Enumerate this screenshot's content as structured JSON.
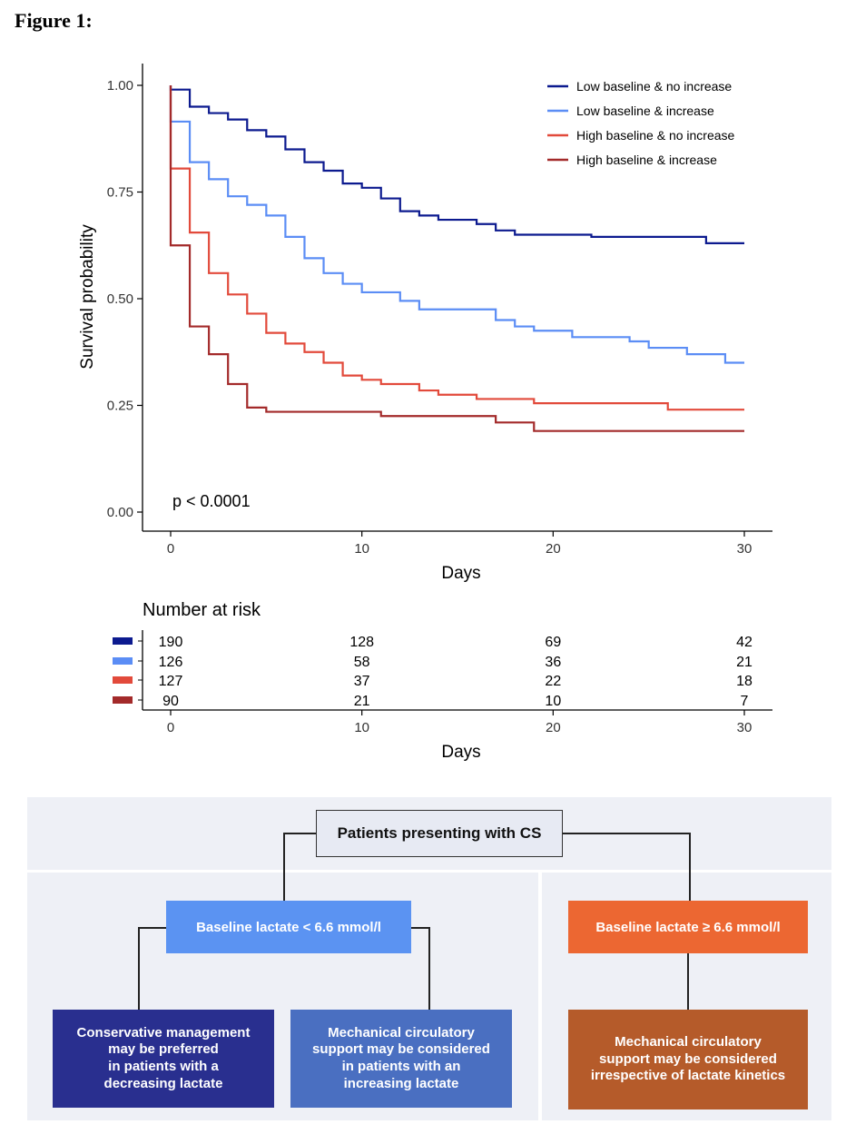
{
  "figure_label": "Figure 1:",
  "chart_data": {
    "type": "line",
    "step": true,
    "xlabel": "Days",
    "ylabel": "Survival probability",
    "xlim": [
      0,
      30
    ],
    "ylim": [
      0,
      1
    ],
    "xticks": [
      0,
      10,
      20,
      30
    ],
    "yticks": [
      "0.00",
      "0.25",
      "0.50",
      "0.75",
      "1.00"
    ],
    "annotation": "p < 0.0001",
    "legend_position": "top-right",
    "series": [
      {
        "name": "Low baseline & no increase",
        "color": "#0c1a8f",
        "points": [
          [
            0,
            0.99
          ],
          [
            1,
            0.95
          ],
          [
            2,
            0.935
          ],
          [
            3,
            0.92
          ],
          [
            4,
            0.895
          ],
          [
            5,
            0.88
          ],
          [
            6,
            0.85
          ],
          [
            7,
            0.82
          ],
          [
            8,
            0.8
          ],
          [
            9,
            0.77
          ],
          [
            10,
            0.76
          ],
          [
            11,
            0.735
          ],
          [
            12,
            0.705
          ],
          [
            13,
            0.695
          ],
          [
            14,
            0.685
          ],
          [
            16,
            0.675
          ],
          [
            17,
            0.66
          ],
          [
            18,
            0.65
          ],
          [
            22,
            0.645
          ],
          [
            28,
            0.63
          ],
          [
            30,
            0.63
          ]
        ]
      },
      {
        "name": "Low baseline & increase",
        "color": "#5b8df5",
        "points": [
          [
            0,
            0.915
          ],
          [
            1,
            0.82
          ],
          [
            2,
            0.78
          ],
          [
            3,
            0.74
          ],
          [
            4,
            0.72
          ],
          [
            5,
            0.695
          ],
          [
            6,
            0.645
          ],
          [
            7,
            0.595
          ],
          [
            8,
            0.56
          ],
          [
            9,
            0.535
          ],
          [
            10,
            0.515
          ],
          [
            12,
            0.495
          ],
          [
            13,
            0.475
          ],
          [
            17,
            0.45
          ],
          [
            18,
            0.435
          ],
          [
            19,
            0.425
          ],
          [
            21,
            0.41
          ],
          [
            24,
            0.4
          ],
          [
            25,
            0.385
          ],
          [
            27,
            0.37
          ],
          [
            29,
            0.35
          ],
          [
            30,
            0.35
          ]
        ]
      },
      {
        "name": "High baseline & no increase",
        "color": "#e24a3b",
        "points": [
          [
            0,
            0.805
          ],
          [
            1,
            0.655
          ],
          [
            2,
            0.56
          ],
          [
            3,
            0.51
          ],
          [
            4,
            0.465
          ],
          [
            5,
            0.42
          ],
          [
            6,
            0.395
          ],
          [
            7,
            0.375
          ],
          [
            8,
            0.35
          ],
          [
            9,
            0.32
          ],
          [
            10,
            0.31
          ],
          [
            11,
            0.3
          ],
          [
            13,
            0.285
          ],
          [
            14,
            0.275
          ],
          [
            16,
            0.265
          ],
          [
            19,
            0.255
          ],
          [
            26,
            0.24
          ],
          [
            30,
            0.24
          ]
        ]
      },
      {
        "name": "High baseline & increase",
        "color": "#a32a2a",
        "points": [
          [
            0,
            0.625
          ],
          [
            1,
            0.435
          ],
          [
            2,
            0.37
          ],
          [
            3,
            0.3
          ],
          [
            4,
            0.245
          ],
          [
            5,
            0.235
          ],
          [
            11,
            0.225
          ],
          [
            17,
            0.21
          ],
          [
            19,
            0.19
          ],
          [
            30,
            0.19
          ]
        ]
      }
    ],
    "risk_table": {
      "title": "Number at risk",
      "xlabel": "Days",
      "xticks": [
        0,
        10,
        20,
        30
      ],
      "rows": [
        {
          "color": "#0c1a8f",
          "values": [
            "190",
            "128",
            "69",
            "42"
          ]
        },
        {
          "color": "#5b8df5",
          "values": [
            "126",
            "58",
            "36",
            "21"
          ]
        },
        {
          "color": "#e24a3b",
          "values": [
            "127",
            "37",
            "22",
            "18"
          ]
        },
        {
          "color": "#a32a2a",
          "values": [
            "90",
            "21",
            "10",
            "7"
          ]
        }
      ]
    }
  },
  "flowchart": {
    "top": "Patients presenting with CS",
    "low": "Baseline lactate < 6.6 mmol/l",
    "high": "Baseline lactate  ≥ 6.6 mmol/l",
    "conservative": [
      "Conservative management",
      "may be preferred",
      "in patients with a",
      "decreasing lactate"
    ],
    "mcs_increasing": [
      "Mechanical circulatory",
      "support may be considered",
      "in patients with an",
      "increasing lactate"
    ],
    "mcs_any": [
      "Mechanical circulatory",
      "support may be considered",
      "irrespective of lactate kinetics"
    ]
  }
}
